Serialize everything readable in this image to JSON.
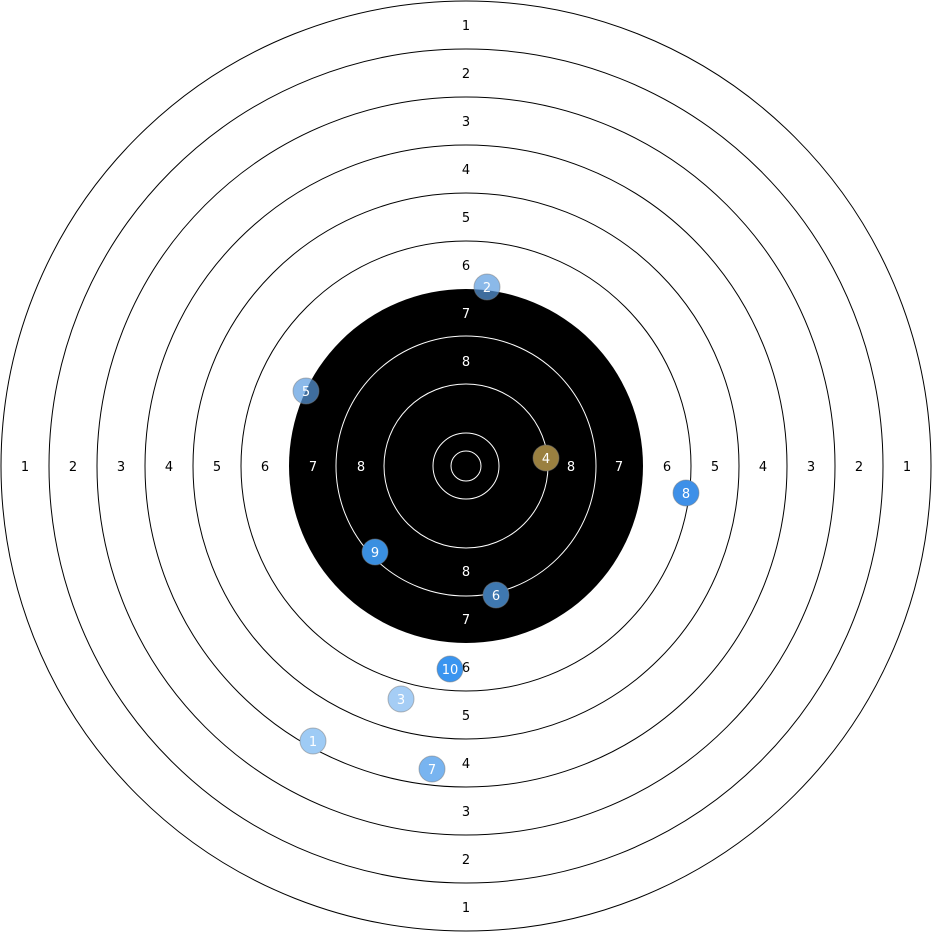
{
  "target": {
    "ring_labels": [
      "1",
      "2",
      "3",
      "4",
      "5",
      "6",
      "7",
      "8"
    ],
    "colors": {
      "black_zone": "#000000",
      "paper": "#ffffff",
      "line_dark": "#000000",
      "line_light": "#ffffff"
    }
  },
  "shots": [
    {
      "label": "1",
      "color": "#9ecbf5",
      "opacity": 1
    },
    {
      "label": "2",
      "color": "#5a9be0",
      "opacity": 0.7
    },
    {
      "label": "3",
      "color": "#a5cdf5",
      "opacity": 1
    },
    {
      "label": "4",
      "color": "#9a8040",
      "opacity": 1
    },
    {
      "label": "5",
      "color": "#5a9be0",
      "opacity": 0.7
    },
    {
      "label": "6",
      "color": "#3f78b0",
      "opacity": 1
    },
    {
      "label": "7",
      "color": "#78b4f0",
      "opacity": 1
    },
    {
      "label": "8",
      "color": "#3e90e8",
      "opacity": 1
    },
    {
      "label": "9",
      "color": "#3a8fe0",
      "opacity": 1
    },
    {
      "label": "10",
      "color": "#3a95f0",
      "opacity": 1
    }
  ]
}
